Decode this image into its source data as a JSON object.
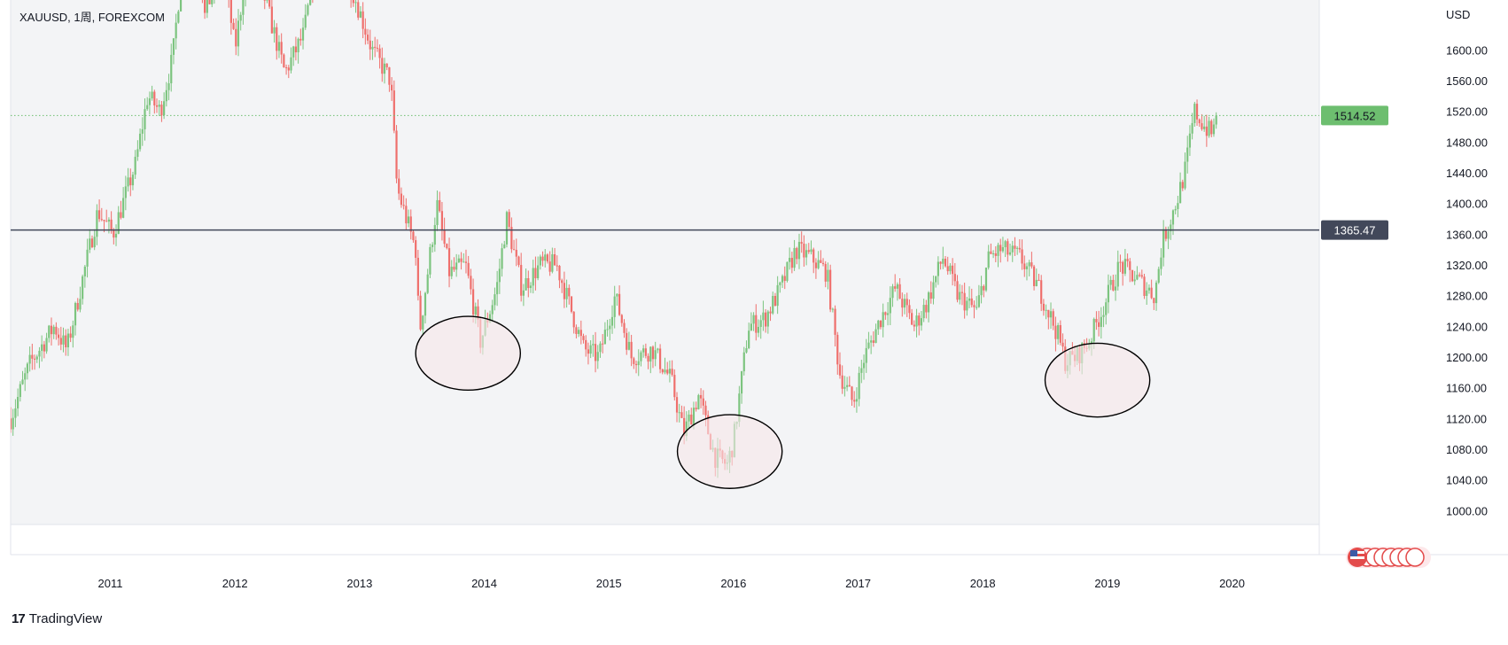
{
  "header": {
    "symbol_line": "XAUUSD, 1周, FOREXCOM"
  },
  "footer": {
    "brand_text": "TradingView",
    "brand_mark": "17"
  },
  "colors": {
    "up": "#7cc47f",
    "down": "#ef6f6c",
    "plot_bg": "#f3f4f6",
    "resistance": "#42485a",
    "price_badge": "#6dbe6f",
    "ellipse_fill": "#f7e6ea"
  },
  "chart_data": {
    "type": "candlestick",
    "y_axis": {
      "label": "USD",
      "range": [
        982,
        1665
      ],
      "ticks": [
        "1000.00",
        "1040.00",
        "1080.00",
        "1120.00",
        "1160.00",
        "1200.00",
        "1240.00",
        "1280.00",
        "1320.00",
        "1360.00",
        "1400.00",
        "1440.00",
        "1480.00",
        "1520.00",
        "1560.00",
        "1600.00"
      ]
    },
    "x_axis": {
      "range": [
        2010.2,
        2020.7
      ],
      "ticks": [
        {
          "label": "2011",
          "x": 2011.0
        },
        {
          "label": "2012",
          "x": 2012.0
        },
        {
          "label": "2013",
          "x": 2013.0
        },
        {
          "label": "2014",
          "x": 2014.0
        },
        {
          "label": "2015",
          "x": 2015.0
        },
        {
          "label": "2016",
          "x": 2016.0
        },
        {
          "label": "2017",
          "x": 2017.0
        },
        {
          "label": "2018",
          "x": 2018.0
        },
        {
          "label": "2019",
          "x": 2019.0
        },
        {
          "label": "2020",
          "x": 2020.0
        }
      ]
    },
    "close_path": [
      [
        2010.2,
        1120
      ],
      [
        2010.35,
        1190
      ],
      [
        2010.55,
        1240
      ],
      [
        2010.65,
        1210
      ],
      [
        2010.9,
        1390
      ],
      [
        2011.02,
        1360
      ],
      [
        2011.1,
        1400
      ],
      [
        2011.2,
        1450
      ],
      [
        2011.3,
        1540
      ],
      [
        2011.4,
        1520
      ],
      [
        2011.5,
        1590
      ],
      [
        2011.62,
        1780
      ],
      [
        2011.68,
        1850
      ],
      [
        2011.75,
        1640
      ],
      [
        2011.9,
        1720
      ],
      [
        2012.0,
        1600
      ],
      [
        2012.12,
        1740
      ],
      [
        2012.25,
        1660
      ],
      [
        2012.4,
        1570
      ],
      [
        2012.55,
        1620
      ],
      [
        2012.7,
        1760
      ],
      [
        2012.85,
        1720
      ],
      [
        2012.98,
        1660
      ],
      [
        2013.1,
        1600
      ],
      [
        2013.25,
        1560
      ],
      [
        2013.3,
        1420
      ],
      [
        2013.45,
        1340
      ],
      [
        2013.48,
        1230
      ],
      [
        2013.62,
        1400
      ],
      [
        2013.72,
        1310
      ],
      [
        2013.85,
        1320
      ],
      [
        2013.97,
        1220
      ],
      [
        2014.1,
        1290
      ],
      [
        2014.18,
        1380
      ],
      [
        2014.3,
        1290
      ],
      [
        2014.45,
        1320
      ],
      [
        2014.58,
        1320
      ],
      [
        2014.8,
        1210
      ],
      [
        2014.92,
        1200
      ],
      [
        2015.05,
        1280
      ],
      [
        2015.18,
        1200
      ],
      [
        2015.35,
        1210
      ],
      [
        2015.5,
        1170
      ],
      [
        2015.6,
        1100
      ],
      [
        2015.72,
        1150
      ],
      [
        2015.85,
        1070
      ],
      [
        2015.95,
        1060
      ],
      [
        2016.0,
        1090
      ],
      [
        2016.12,
        1240
      ],
      [
        2016.25,
        1250
      ],
      [
        2016.38,
        1290
      ],
      [
        2016.5,
        1340
      ],
      [
        2016.62,
        1330
      ],
      [
        2016.75,
        1310
      ],
      [
        2016.85,
        1180
      ],
      [
        2016.96,
        1140
      ],
      [
        2017.05,
        1200
      ],
      [
        2017.18,
        1250
      ],
      [
        2017.3,
        1290
      ],
      [
        2017.45,
        1240
      ],
      [
        2017.55,
        1270
      ],
      [
        2017.68,
        1330
      ],
      [
        2017.8,
        1280
      ],
      [
        2017.95,
        1260
      ],
      [
        2018.05,
        1330
      ],
      [
        2018.15,
        1340
      ],
      [
        2018.3,
        1330
      ],
      [
        2018.45,
        1290
      ],
      [
        2018.6,
        1230
      ],
      [
        2018.66,
        1195
      ],
      [
        2018.75,
        1200
      ],
      [
        2018.85,
        1220
      ],
      [
        2018.98,
        1270
      ],
      [
        2019.1,
        1320
      ],
      [
        2019.25,
        1300
      ],
      [
        2019.38,
        1280
      ],
      [
        2019.44,
        1350
      ],
      [
        2019.55,
        1400
      ],
      [
        2019.62,
        1440
      ],
      [
        2019.7,
        1520
      ],
      [
        2019.78,
        1500
      ],
      [
        2019.84,
        1490
      ],
      [
        2019.88,
        1514.52
      ]
    ],
    "last_price": {
      "value": 1514.52,
      "label": "1514.52"
    },
    "horizontal_line": {
      "value": 1365.47,
      "label": "1365.47"
    },
    "ellipses": [
      {
        "name": "support-ellipse-2013",
        "cx": 2013.87,
        "cy": 1205,
        "rx": 0.42,
        "ry": 48
      },
      {
        "name": "support-ellipse-2015",
        "cx": 2015.97,
        "cy": 1077,
        "rx": 0.42,
        "ry": 48
      },
      {
        "name": "support-ellipse-2018",
        "cx": 2018.92,
        "cy": 1170,
        "rx": 0.42,
        "ry": 48
      }
    ]
  }
}
